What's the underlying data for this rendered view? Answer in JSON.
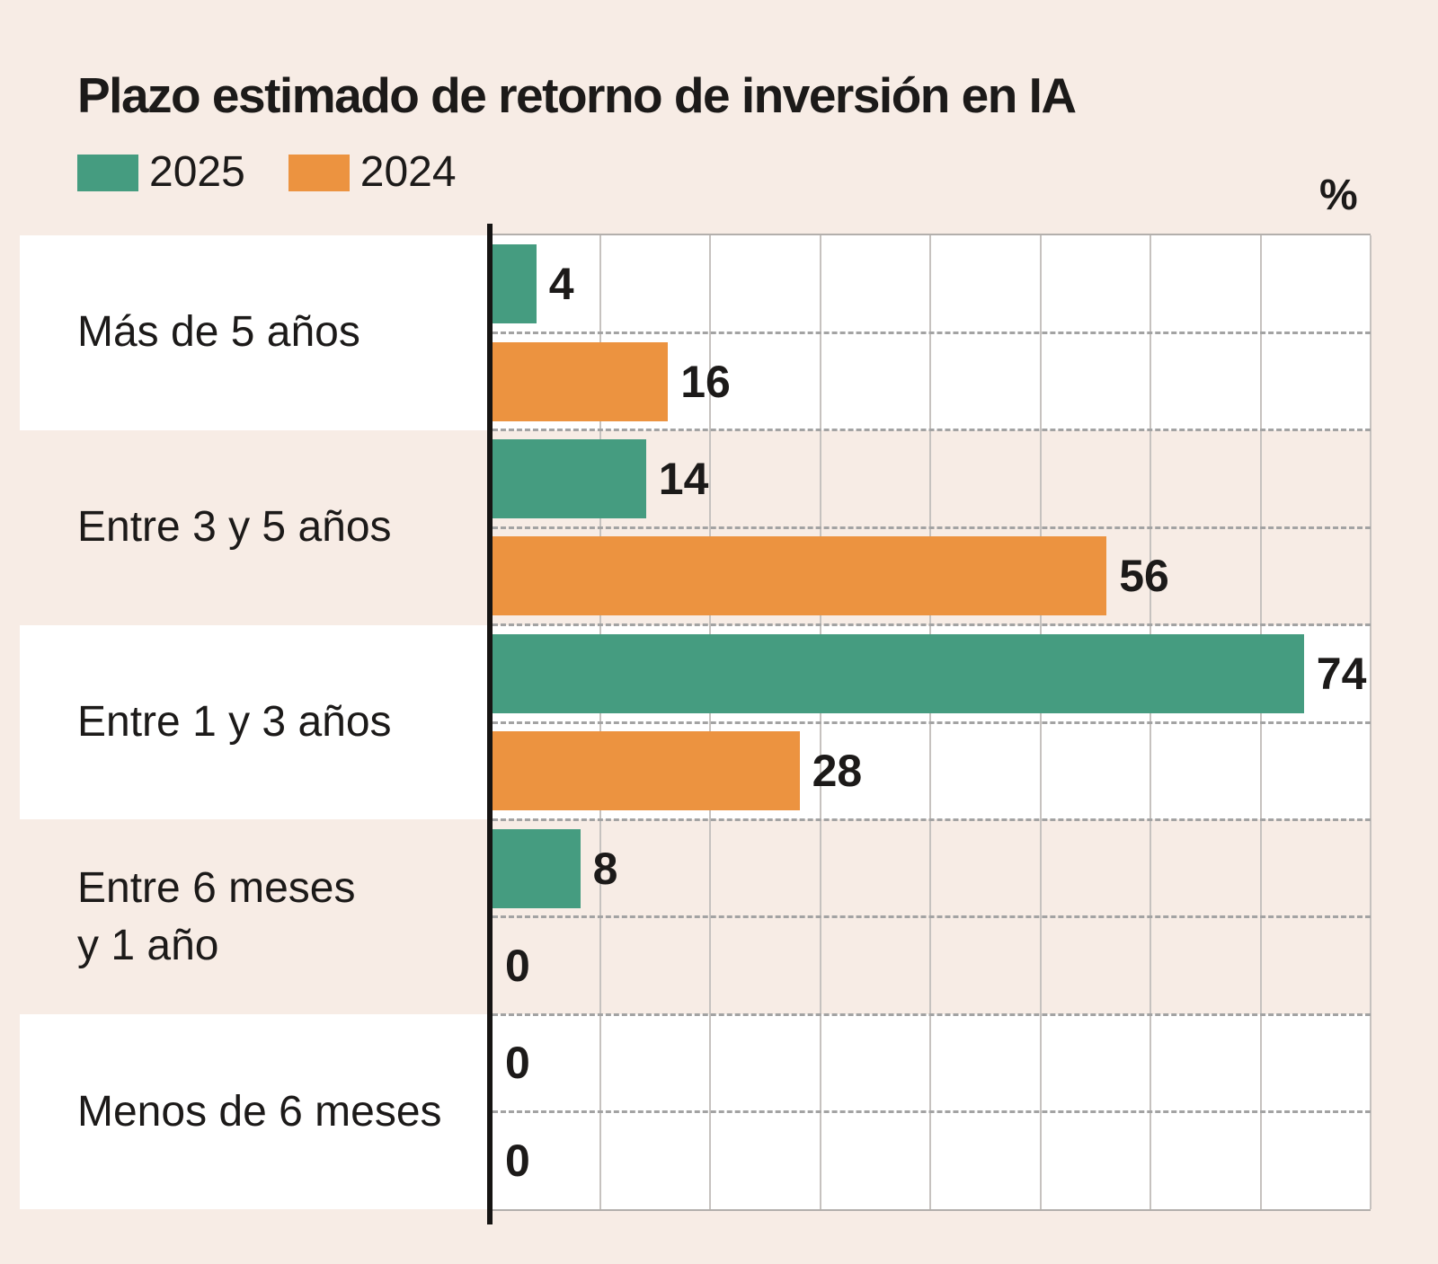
{
  "title": "Plazo estimado de retorno de inversión en IA",
  "unit_label": "%",
  "legend": {
    "items": [
      {
        "label": "2025",
        "color": "#459c80"
      },
      {
        "label": "2024",
        "color": "#ec9340"
      }
    ],
    "position": "top-left"
  },
  "chart_data": {
    "type": "bar",
    "orientation": "horizontal",
    "title": "Plazo estimado de retorno de inversión en IA",
    "unit": "%",
    "categories": [
      "Más de 5 años",
      "Entre 3 y 5 años",
      "Entre 1 y 3 años",
      "Entre 6 meses y 1 año",
      "Menos de 6 meses"
    ],
    "category_lines": [
      [
        "Más de 5 años"
      ],
      [
        "Entre 3 y 5 años"
      ],
      [
        "Entre 1 y 3 años"
      ],
      [
        "Entre 6 meses",
        "y 1 año"
      ],
      [
        "Menos de 6 meses"
      ]
    ],
    "series": [
      {
        "name": "2025",
        "color": "#459c80",
        "values": [
          4,
          14,
          74,
          8,
          0
        ]
      },
      {
        "name": "2024",
        "color": "#ec9340",
        "values": [
          16,
          56,
          28,
          0,
          0
        ]
      }
    ],
    "xlim": [
      0,
      80
    ],
    "grid_step_pct": 10,
    "grid": "on",
    "value_labels": "on",
    "legend_position": "top-left"
  },
  "style": {
    "background_color": "#f7ece5",
    "band_color": "#ffffff",
    "axis_color": "#161413",
    "grid_color": "#c6c2bf",
    "border_color": "#b3afac",
    "dash_color": "#a3a3a3",
    "text_color": "#1c1a19"
  }
}
